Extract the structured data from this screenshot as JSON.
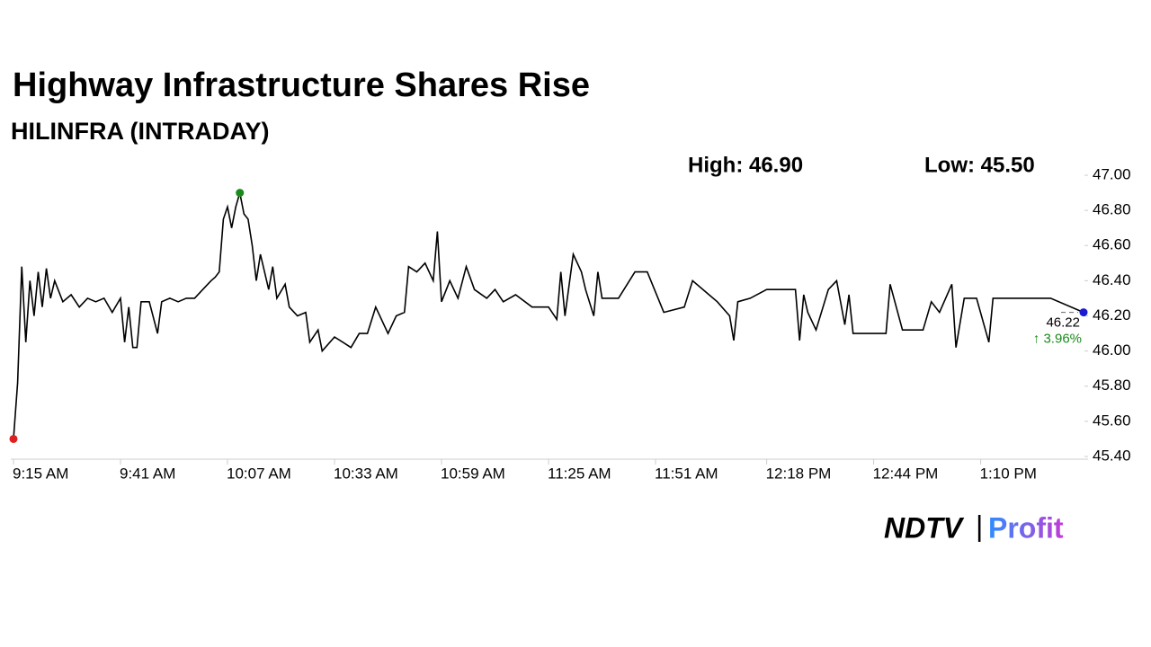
{
  "chart_data": {
    "type": "line",
    "title": "Highway Infrastructure Shares Rise",
    "subtitle": "HILINFRA (INTRADAY)",
    "high_label": "High: 46.90",
    "low_label": "Low: 45.50",
    "last_label": "46.22",
    "change_label": "↑ 3.96%",
    "brand": [
      "NDTV",
      "|",
      "Profit"
    ],
    "x": [
      "9:15 AM",
      "9:16 AM",
      "9:17 AM",
      "9:18 AM",
      "9:19 AM",
      "9:20 AM",
      "9:21 AM",
      "9:22 AM",
      "9:23 AM",
      "9:24 AM",
      "9:25 AM",
      "9:27 AM",
      "9:29 AM",
      "9:31 AM",
      "9:33 AM",
      "9:35 AM",
      "9:37 AM",
      "9:39 AM",
      "9:41 AM",
      "9:42 AM",
      "9:43 AM",
      "9:44 AM",
      "9:45 AM",
      "9:46 AM",
      "9:48 AM",
      "9:50 AM",
      "9:51 AM",
      "9:53 AM",
      "9:55 AM",
      "9:57 AM",
      "9:59 AM",
      "10:01 AM",
      "10:03 AM",
      "10:04 AM",
      "10:05 AM",
      "10:06 AM",
      "10:07 AM",
      "10:08 AM",
      "10:09 AM",
      "10:10 AM",
      "10:11 AM",
      "10:12 AM",
      "10:13 AM",
      "10:14 AM",
      "10:15 AM",
      "10:17 AM",
      "10:18 AM",
      "10:19 AM",
      "10:21 AM",
      "10:22 AM",
      "10:24 AM",
      "10:26 AM",
      "10:27 AM",
      "10:29 AM",
      "10:30 AM",
      "10:33 AM",
      "10:35 AM",
      "10:37 AM",
      "10:39 AM",
      "10:41 AM",
      "10:43 AM",
      "10:46 AM",
      "10:48 AM",
      "10:50 AM",
      "10:51 AM",
      "10:53 AM",
      "10:55 AM",
      "10:57 AM",
      "10:58 AM",
      "10:59 AM",
      "11:01 AM",
      "11:03 AM",
      "11:05 AM",
      "11:07 AM",
      "11:10 AM",
      "11:12 AM",
      "11:14 AM",
      "11:17 AM",
      "11:21 AM",
      "11:25 AM",
      "11:27 AM",
      "11:28 AM",
      "11:29 AM",
      "11:31 AM",
      "11:33 AM",
      "11:34 AM",
      "11:36 AM",
      "11:37 AM",
      "11:38 AM",
      "11:42 AM",
      "11:46 AM",
      "11:49 AM",
      "11:53 AM",
      "11:58 AM",
      "12:00 PM",
      "12:04 PM",
      "12:06 PM",
      "12:09 PM",
      "12:10 PM",
      "12:11 PM",
      "12:14 PM",
      "12:18 PM",
      "12:22 PM",
      "12:25 PM",
      "12:26 PM",
      "12:27 PM",
      "12:28 PM",
      "12:30 PM",
      "12:33 PM",
      "12:35 PM",
      "12:37 PM",
      "12:38 PM",
      "12:39 PM",
      "12:47 PM",
      "12:48 PM",
      "12:51 PM",
      "12:56 PM",
      "12:58 PM",
      "1:00 PM",
      "1:03 PM",
      "1:04 PM",
      "1:06 PM",
      "1:09 PM",
      "1:12 PM",
      "1:13 PM",
      "1:27 PM",
      "1:35 PM"
    ],
    "series": [
      {
        "color": "#000000",
        "values": [
          45.5,
          45.82,
          46.48,
          46.05,
          46.4,
          46.2,
          46.45,
          46.25,
          46.47,
          46.3,
          46.4,
          46.28,
          46.32,
          46.25,
          46.3,
          46.28,
          46.3,
          46.22,
          46.3,
          46.05,
          46.25,
          46.02,
          46.02,
          46.28,
          46.28,
          46.1,
          46.28,
          46.3,
          46.28,
          46.3,
          46.3,
          46.35,
          46.4,
          46.42,
          46.45,
          46.75,
          46.82,
          46.7,
          46.82,
          46.9,
          46.78,
          46.75,
          46.6,
          46.4,
          46.55,
          46.35,
          46.48,
          46.3,
          46.38,
          46.25,
          46.2,
          46.22,
          46.05,
          46.12,
          46.0,
          46.08,
          46.05,
          46.02,
          46.1,
          46.1,
          46.25,
          46.1,
          46.2,
          46.22,
          46.48,
          46.45,
          46.5,
          46.4,
          46.68,
          46.28,
          46.4,
          46.3,
          46.48,
          46.35,
          46.3,
          46.35,
          46.28,
          46.32,
          46.25,
          46.25,
          46.18,
          46.45,
          46.2,
          46.55,
          46.45,
          46.35,
          46.2,
          46.45,
          46.3,
          46.3,
          46.45,
          46.45,
          46.22,
          46.25,
          46.4,
          46.32,
          46.28,
          46.2,
          46.06,
          46.28,
          46.3,
          46.35,
          46.35,
          46.35,
          46.06,
          46.32,
          46.22,
          46.12,
          46.35,
          46.4,
          46.15,
          46.32,
          46.1,
          46.1,
          46.38,
          46.12,
          46.12,
          46.28,
          46.22,
          46.38,
          46.02,
          46.3,
          46.3,
          46.05,
          46.3,
          46.3,
          46.22
        ]
      }
    ],
    "high_color": "#1a8a1a",
    "low_color": "#e02020",
    "last_color": "#1a1ad0",
    "change_color": "#1a8a1a",
    "xlim": [
      "9:15 AM",
      "1:35 PM"
    ],
    "xticks": [
      "9:15 AM",
      "9:41 AM",
      "10:07 AM",
      "10:33 AM",
      "10:59 AM",
      "11:25 AM",
      "11:51 AM",
      "12:18 PM",
      "12:44 PM",
      "1:10 PM"
    ],
    "ylim": [
      45.4,
      47.0
    ],
    "yticks": [
      {
        "value": 45.4,
        "label": "45.40"
      },
      {
        "value": 45.6,
        "label": "45.60"
      },
      {
        "value": 45.8,
        "label": "45.80"
      },
      {
        "value": 46,
        "label": "46.00"
      },
      {
        "value": 46.2,
        "label": "46.20"
      },
      {
        "value": 46.4,
        "label": "46.40"
      },
      {
        "value": 46.6,
        "label": "46.60"
      },
      {
        "value": 46.8,
        "label": "46.80"
      },
      {
        "value": 47,
        "label": "47.00"
      }
    ],
    "grid": false
  }
}
